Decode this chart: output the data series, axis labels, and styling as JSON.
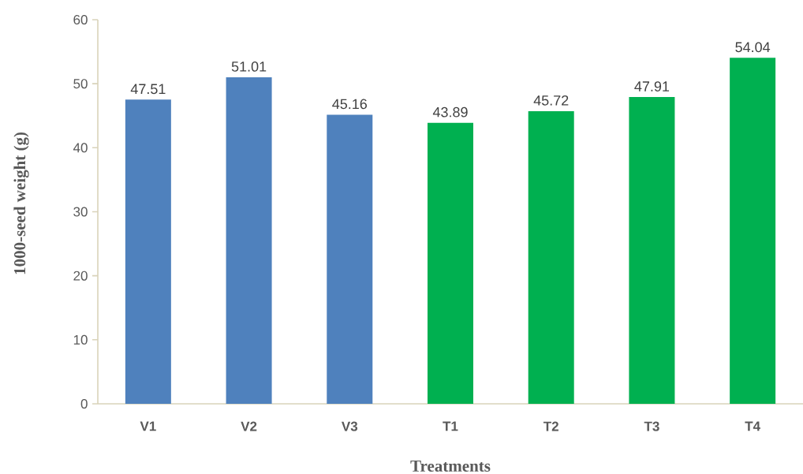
{
  "chart_data": {
    "type": "bar",
    "xlabel": "Treatments",
    "ylabel": "1000-seed weight (g)",
    "categories": [
      "V1",
      "V2",
      "V3",
      "T1",
      "T2",
      "T3",
      "T4"
    ],
    "values": [
      47.51,
      51.01,
      45.16,
      43.89,
      45.72,
      47.91,
      54.04
    ],
    "colors": [
      "#4f81bd",
      "#4f81bd",
      "#4f81bd",
      "#00b050",
      "#00b050",
      "#00b050",
      "#00b050"
    ],
    "ylim": [
      0,
      60
    ],
    "yticks": [
      0,
      10,
      20,
      30,
      40,
      50,
      60
    ],
    "data_labels": true
  }
}
